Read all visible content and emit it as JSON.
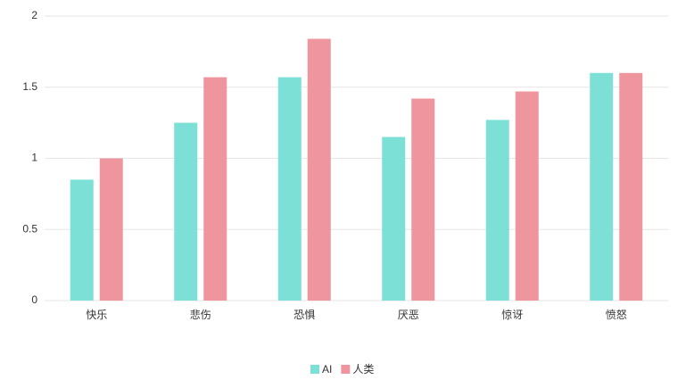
{
  "chart_data": {
    "type": "bar",
    "categories": [
      "快乐",
      "悲伤",
      "恐惧",
      "厌恶",
      "惊讶",
      "愤怒"
    ],
    "series": [
      {
        "name": "AI",
        "color": "#7de0d6",
        "values": [
          0.85,
          1.25,
          1.57,
          1.15,
          1.27,
          1.6
        ]
      },
      {
        "name": "人类",
        "color": "#ef959d",
        "values": [
          1.0,
          1.57,
          1.84,
          1.42,
          1.47,
          1.6
        ]
      }
    ],
    "ylim": [
      0,
      2
    ],
    "yticks": [
      0,
      0.5,
      1,
      1.5,
      2
    ],
    "grid": true,
    "legend": "bottom"
  }
}
